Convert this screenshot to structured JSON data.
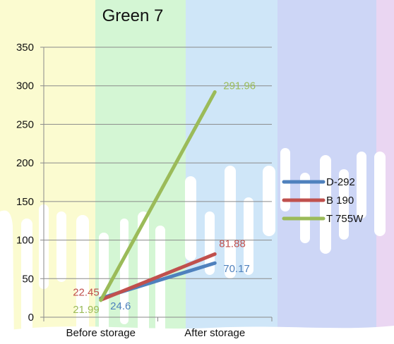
{
  "chart_data": {
    "type": "line",
    "title": "Green 7",
    "categories": [
      "Before storage",
      "After storage"
    ],
    "ylim": [
      0,
      350
    ],
    "yticks": [
      0,
      50,
      100,
      150,
      200,
      250,
      300,
      350
    ],
    "grid": true,
    "legend": "right",
    "series": [
      {
        "name": "D-292",
        "values": [
          24.6,
          70.17
        ],
        "color": "#4f81bd",
        "labels": [
          "24.6",
          "70.17"
        ]
      },
      {
        "name": "B 190",
        "values": [
          22.45,
          81.88
        ],
        "color": "#c0504d",
        "labels": [
          "22.45",
          "81.88"
        ]
      },
      {
        "name": "T 755W",
        "values": [
          21.99,
          291.96
        ],
        "color": "#9bbb59",
        "labels": [
          "21.99",
          "291.96"
        ]
      }
    ]
  }
}
